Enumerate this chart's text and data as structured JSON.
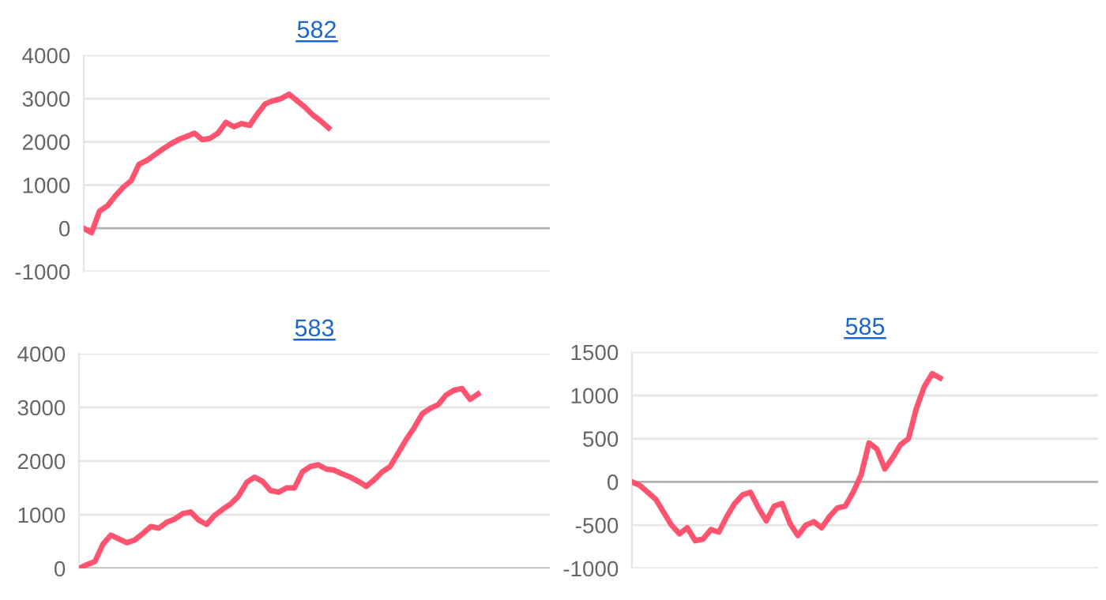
{
  "chart_data": [
    {
      "type": "line",
      "title": "582",
      "categories": [
        null,
        null,
        null,
        null,
        null,
        null,
        null,
        null,
        null,
        null,
        null,
        null,
        null,
        null,
        null,
        null,
        null,
        null,
        null,
        null,
        null,
        null,
        null,
        null,
        null,
        null,
        null,
        null,
        null,
        null,
        null,
        null,
        null,
        null,
        null,
        null,
        null,
        null,
        null,
        null,
        null,
        null,
        null,
        null,
        null,
        null,
        null,
        null,
        null,
        null,
        null,
        null,
        null,
        null,
        null,
        null,
        null,
        null,
        null,
        null
      ],
      "series": [
        {
          "color": "#ff5470",
          "values": [
            0,
            -100,
            400,
            520,
            750,
            950,
            1100,
            1480,
            1570,
            1700,
            1830,
            1950,
            2050,
            2120,
            2200,
            2050,
            2080,
            2200,
            2450,
            2350,
            2420,
            2380,
            2650,
            2880,
            2950,
            3000,
            3100,
            2950,
            2800,
            2620,
            2480,
            2320,
            null,
            null,
            null,
            null,
            null,
            null,
            null,
            null,
            null,
            null,
            null,
            null,
            null,
            null,
            null,
            null,
            null,
            null,
            null,
            null,
            null,
            null,
            null,
            null,
            null,
            null,
            null,
            null
          ]
        }
      ],
      "ylim": [
        -1000,
        4000
      ],
      "yticks": [
        -1000,
        0,
        1000,
        2000,
        3000,
        4000
      ],
      "grid": "y",
      "tick_labels": "y",
      "marker": "none",
      "line_style": "solid"
    },
    {
      "type": "line",
      "title": "583",
      "categories": [
        null,
        null,
        null,
        null,
        null,
        null,
        null,
        null,
        null,
        null,
        null,
        null,
        null,
        null,
        null,
        null,
        null,
        null,
        null,
        null,
        null,
        null,
        null,
        null,
        null,
        null,
        null,
        null,
        null,
        null,
        null,
        null,
        null,
        null,
        null,
        null,
        null,
        null,
        null,
        null,
        null,
        null,
        null,
        null,
        null,
        null,
        null,
        null,
        null,
        null,
        null,
        null,
        null,
        null,
        null,
        null,
        null,
        null,
        null,
        null
      ],
      "series": [
        {
          "color": "#ff5470",
          "values": [
            0,
            70,
            130,
            450,
            620,
            550,
            480,
            530,
            650,
            780,
            750,
            860,
            920,
            1020,
            1050,
            900,
            820,
            990,
            1100,
            1200,
            1350,
            1600,
            1700,
            1620,
            1450,
            1420,
            1500,
            1500,
            1800,
            1900,
            1930,
            1850,
            1830,
            1760,
            1700,
            1620,
            1530,
            1650,
            1800,
            1900,
            2150,
            2400,
            2620,
            2880,
            2980,
            3050,
            3230,
            3320,
            3350,
            3150,
            3250,
            null,
            null,
            null,
            null,
            null,
            null,
            null,
            null,
            null
          ]
        }
      ],
      "ylim": [
        0,
        4000
      ],
      "yticks": [
        0,
        1000,
        2000,
        3000,
        4000
      ],
      "grid": "y",
      "tick_labels": "y",
      "marker": "none",
      "line_style": "solid"
    },
    {
      "type": "line",
      "title": "585",
      "categories": [
        null,
        null,
        null,
        null,
        null,
        null,
        null,
        null,
        null,
        null,
        null,
        null,
        null,
        null,
        null,
        null,
        null,
        null,
        null,
        null,
        null,
        null,
        null,
        null,
        null,
        null,
        null,
        null,
        null,
        null,
        null,
        null,
        null,
        null,
        null,
        null,
        null,
        null,
        null,
        null,
        null,
        null,
        null,
        null,
        null,
        null,
        null,
        null,
        null,
        null,
        null,
        null,
        null,
        null,
        null,
        null,
        null,
        null,
        null,
        null
      ],
      "series": [
        {
          "color": "#ff5470",
          "values": [
            0,
            -40,
            -120,
            -200,
            -350,
            -500,
            -600,
            -530,
            -680,
            -660,
            -550,
            -580,
            -400,
            -250,
            -150,
            -120,
            -300,
            -450,
            -280,
            -250,
            -480,
            -620,
            -500,
            -460,
            -530,
            -400,
            -300,
            -280,
            -120,
            80,
            450,
            380,
            150,
            280,
            430,
            500,
            850,
            1100,
            1250,
            1200,
            null,
            null,
            null,
            null,
            null,
            null,
            null,
            null,
            null,
            null,
            null,
            null,
            null,
            null,
            null,
            null,
            null,
            null,
            null,
            null
          ]
        }
      ],
      "ylim": [
        -1000,
        1500
      ],
      "yticks": [
        -1000,
        -500,
        0,
        500,
        1000,
        1500
      ],
      "grid": "y",
      "tick_labels": "y",
      "marker": "none",
      "line_style": "solid"
    }
  ]
}
